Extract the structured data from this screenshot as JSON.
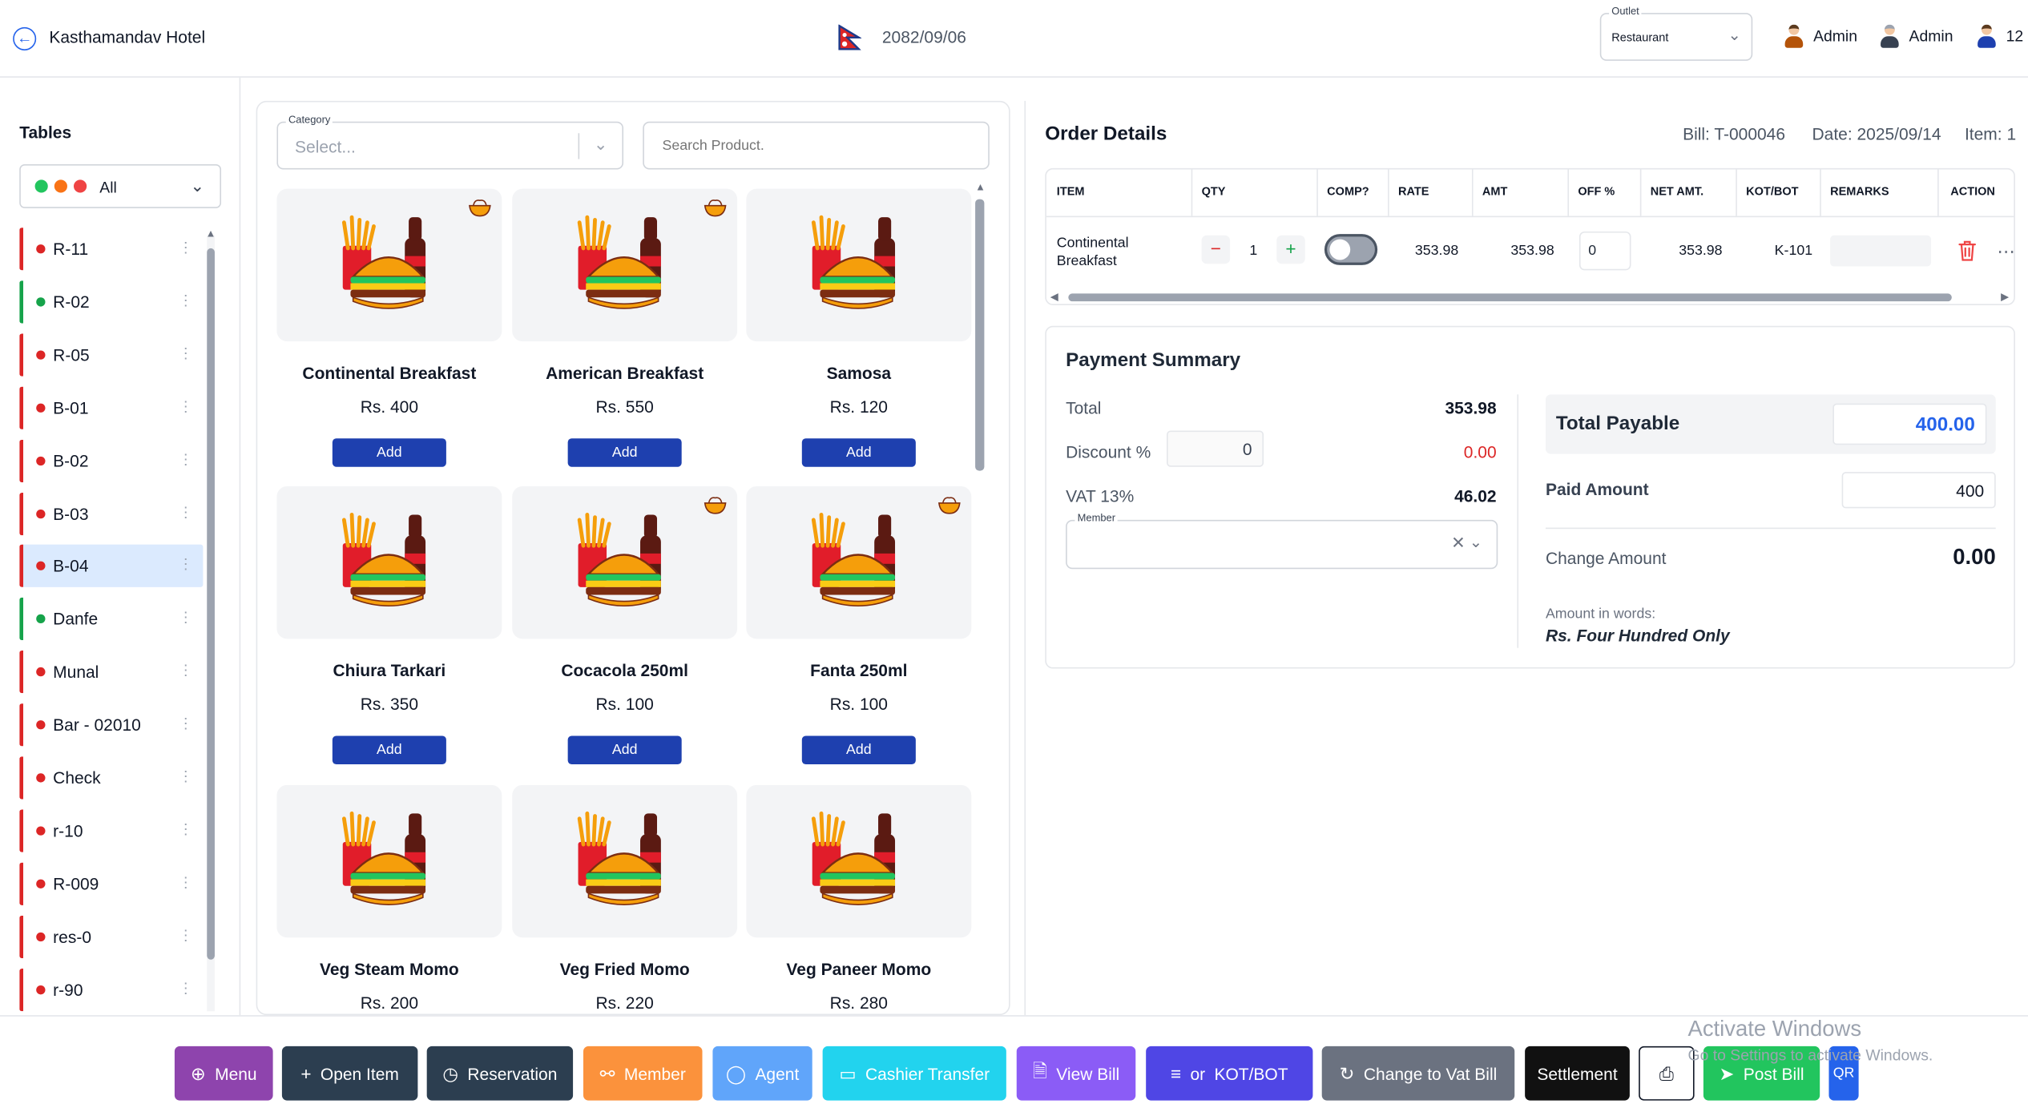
{
  "header": {
    "hotel_name": "Kasthamandav Hotel",
    "date_bs": "2082/09/06",
    "outlet_label": "Outlet",
    "outlet_value": "Restaurant",
    "users": [
      "Admin",
      "Admin",
      "12"
    ]
  },
  "tables": {
    "title": "Tables",
    "filter_value": "All",
    "filter_dot_colors": [
      "#22c55e",
      "#f97316",
      "#ef4444"
    ],
    "items": [
      {
        "name": "R-11",
        "status": "red"
      },
      {
        "name": "R-02",
        "status": "green"
      },
      {
        "name": "R-05",
        "status": "red"
      },
      {
        "name": "B-01",
        "status": "red"
      },
      {
        "name": "B-02",
        "status": "red"
      },
      {
        "name": "B-03",
        "status": "red"
      },
      {
        "name": "B-04",
        "status": "red",
        "selected": true
      },
      {
        "name": "Danfe",
        "status": "green"
      },
      {
        "name": "Munal",
        "status": "red"
      },
      {
        "name": "Bar - 02010",
        "status": "red"
      },
      {
        "name": "Check",
        "status": "red"
      },
      {
        "name": "r-10",
        "status": "red"
      },
      {
        "name": "R-009",
        "status": "red"
      },
      {
        "name": "res-0",
        "status": "red"
      },
      {
        "name": "r-90",
        "status": "red"
      }
    ]
  },
  "products": {
    "category_label": "Category",
    "category_placeholder": "Select...",
    "search_placeholder": "Search Product.",
    "add_label": "Add",
    "items": [
      {
        "name": "Continental Breakfast",
        "price": "Rs. 400",
        "badge": true
      },
      {
        "name": "American Breakfast",
        "price": "Rs. 550",
        "badge": true
      },
      {
        "name": "Samosa",
        "price": "Rs. 120",
        "badge": false
      },
      {
        "name": "Chiura Tarkari",
        "price": "Rs. 350",
        "badge": false
      },
      {
        "name": "Cocacola 250ml",
        "price": "Rs. 100",
        "badge": true
      },
      {
        "name": "Fanta 250ml",
        "price": "Rs. 100",
        "badge": true
      },
      {
        "name": "Veg Steam Momo",
        "price": "Rs. 200",
        "badge": false
      },
      {
        "name": "Veg Fried Momo",
        "price": "Rs. 220",
        "badge": false
      },
      {
        "name": "Veg Paneer Momo",
        "price": "Rs. 280",
        "badge": false
      }
    ]
  },
  "order": {
    "title": "Order Details",
    "bill": "Bill: T-000046",
    "date": "Date: 2025/09/14",
    "item_count": "Item: 1",
    "columns": [
      "ITEM",
      "QTY",
      "COMP?",
      "RATE",
      "AMT",
      "OFF %",
      "NET AMT.",
      "KOT/BOT",
      "REMARKS",
      "ACTION"
    ],
    "rows": [
      {
        "item_line1": "Continental",
        "item_line2": "Breakfast",
        "qty": "1",
        "comp": false,
        "rate": "353.98",
        "amt": "353.98",
        "off": "0",
        "net": "353.98",
        "kot": "K-101",
        "remarks": ""
      }
    ]
  },
  "payment": {
    "title": "Payment Summary",
    "total_label": "Total",
    "total_value": "353.98",
    "discount_label": "Discount %",
    "discount_input": "0",
    "discount_value": "0.00",
    "vat_label": "VAT 13%",
    "vat_value": "46.02",
    "member_label": "Member",
    "total_payable_label": "Total Payable",
    "total_payable_value": "400.00",
    "paid_label": "Paid Amount",
    "paid_value": "400",
    "change_label": "Change Amount",
    "change_value": "0.00",
    "words_label": "Amount in words:",
    "words_value": "Rs. Four Hundred Only"
  },
  "actions": [
    {
      "label": "Menu",
      "icon": "plus-circle-icon",
      "color": "#8e44ad"
    },
    {
      "label": "Open Item",
      "icon": "plus-icon",
      "color": "#2c3e50"
    },
    {
      "label": "Reservation",
      "icon": "clock-icon",
      "color": "#2c3e50"
    },
    {
      "label": "Member",
      "icon": "users-icon",
      "color": "#fb923c"
    },
    {
      "label": "Agent",
      "icon": "user-icon",
      "color": "#60a5fa"
    },
    {
      "label": "Cashier Transfer",
      "icon": "card-icon",
      "color": "#22d3ee"
    },
    {
      "label": "View Bill",
      "icon": "document-icon",
      "color": "#8b5cf6"
    },
    {
      "label": "KOT/BOT",
      "icon": "kot-icon",
      "prefix": "or",
      "color": "#4f46e5"
    },
    {
      "label": "Change to Vat Bill",
      "icon": "refresh-icon",
      "color": "#6b7280"
    },
    {
      "label": "Settlement",
      "icon": "",
      "color": "#111111"
    },
    {
      "label": "",
      "icon": "printer-icon",
      "color": "#ffffff"
    },
    {
      "label": "Post Bill",
      "icon": "send-icon",
      "color": "#22c55e"
    },
    {
      "label": "QR",
      "icon": "",
      "color": "#2563eb"
    }
  ],
  "watermark": {
    "title": "Activate Windows",
    "subtitle": "Go to Settings to activate Windows."
  }
}
